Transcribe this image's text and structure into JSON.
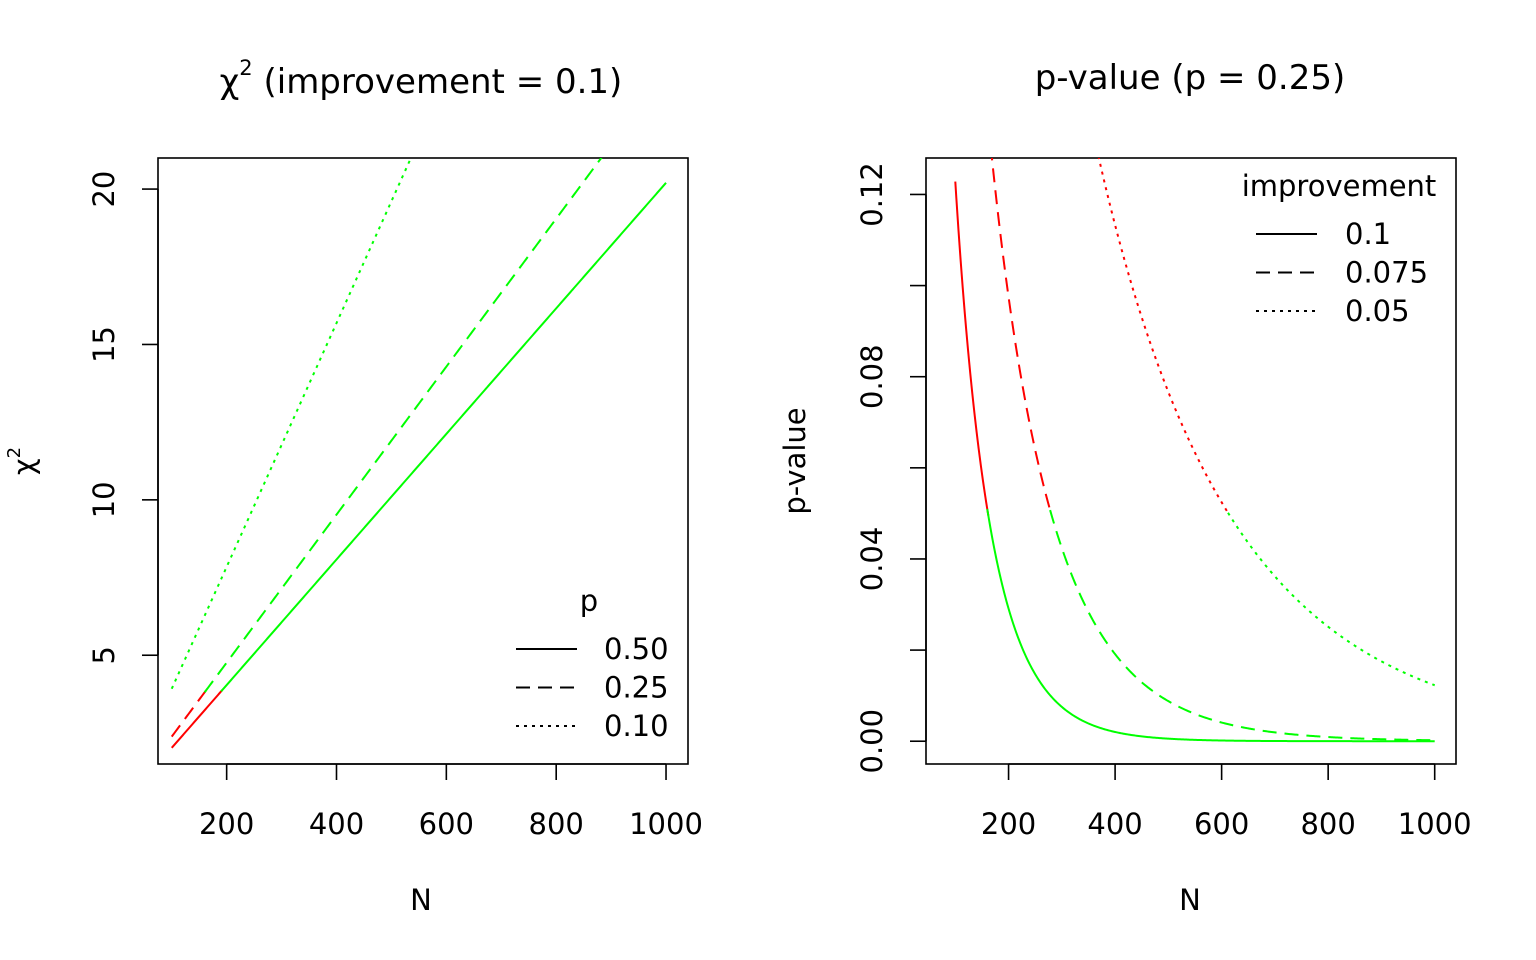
{
  "chart_data": [
    {
      "type": "line",
      "title": "χ",
      "title_sup": "2",
      "title_rest": " (improvement = 0.1)",
      "xlabel": "N",
      "ylabel": "χ",
      "ylabel_sup": "2",
      "xlim": [
        75,
        1040
      ],
      "ylim": [
        1.5,
        21
      ],
      "xticks": [
        200,
        400,
        600,
        800,
        1000
      ],
      "yticks": [
        5,
        10,
        15,
        20
      ],
      "legend": {
        "title": "p",
        "position": "bottom-right",
        "entries": [
          {
            "label": "0.50",
            "dash": "solid"
          },
          {
            "label": "0.25",
            "dash": "dashed"
          },
          {
            "label": "0.10",
            "dash": "dotted"
          }
        ]
      },
      "colors": {
        "significant": "#00ff00",
        "not_significant": "#ff0000"
      },
      "threshold": {
        "statistic": 3.84,
        "note": "red below the 3.84 critical value, green above"
      },
      "series": [
        {
          "name": "0.50",
          "dash": "solid",
          "formula": "chisq",
          "p": 0.5,
          "improvement": 0.1,
          "x_range": [
            100,
            1000
          ],
          "approx_endpoints": [
            [
              100,
              2.02
            ],
            [
              1000,
              20.2
            ]
          ]
        },
        {
          "name": "0.25",
          "dash": "dashed",
          "formula": "chisq",
          "p": 0.25,
          "improvement": 0.1,
          "x_range": [
            100,
            1000
          ],
          "approx_endpoints": [
            [
              100,
              2.41
            ],
            [
              870,
              21.0
            ]
          ]
        },
        {
          "name": "0.10",
          "dash": "dotted",
          "formula": "chisq",
          "p": 0.1,
          "improvement": 0.1,
          "x_range": [
            100,
            1000
          ],
          "approx_endpoints": [
            [
              100,
              3.92
            ],
            [
              535,
              21.0
            ]
          ]
        }
      ]
    },
    {
      "type": "line",
      "title": "p-value (p = 0.25)",
      "xlabel": "N",
      "ylabel": "p-value",
      "xlim": [
        45,
        1040
      ],
      "ylim": [
        -0.005,
        0.128
      ],
      "xticks": [
        200,
        400,
        600,
        800,
        1000
      ],
      "yticks": [
        0.0,
        0.04,
        0.08,
        0.12
      ],
      "ytick_labels": [
        "0.00",
        "0.04",
        "0.08",
        "0.12"
      ],
      "minor_yticks": [
        0.02,
        0.06,
        0.1
      ],
      "legend": {
        "title": "improvement",
        "position": "top-right",
        "entries": [
          {
            "label": "0.1",
            "dash": "solid"
          },
          {
            "label": "0.075",
            "dash": "dashed"
          },
          {
            "label": "0.05",
            "dash": "dotted"
          }
        ]
      },
      "colors": {
        "significant": "#00ff00",
        "not_significant": "#ff0000"
      },
      "threshold": {
        "p_value": 0.05,
        "note": "red above 0.05, green below"
      },
      "series": [
        {
          "name": "0.1",
          "dash": "solid",
          "formula": "pvalue",
          "p": 0.25,
          "improvement": 0.1,
          "x_range": [
            100,
            1000
          ],
          "approx_endpoints": [
            [
              100,
              0.123
            ],
            [
              1000,
              0.0
            ]
          ]
        },
        {
          "name": "0.075",
          "dash": "dashed",
          "formula": "pvalue",
          "p": 0.25,
          "improvement": 0.075,
          "x_range": [
            100,
            1000
          ],
          "approx_endpoints": [
            [
              167,
              0.128
            ],
            [
              1000,
              0.0
            ]
          ]
        },
        {
          "name": "0.05",
          "dash": "dotted",
          "formula": "pvalue",
          "p": 0.25,
          "improvement": 0.05,
          "x_range": [
            100,
            1000
          ],
          "approx_endpoints": [
            [
              370,
              0.128
            ],
            [
              1000,
              0.0123
            ]
          ]
        }
      ]
    }
  ]
}
